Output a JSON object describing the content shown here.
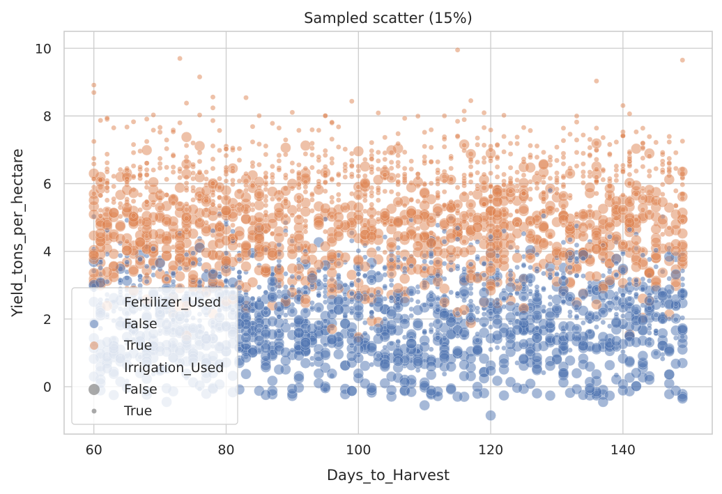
{
  "chart_data": {
    "type": "scatter",
    "title": "Sampled scatter (15%)",
    "xlabel": "Days_to_Harvest",
    "ylabel": "Yield_tons_per_hectare",
    "xlim": [
      55.5,
      153.5
    ],
    "ylim": [
      -1.4,
      10.5
    ],
    "x_ticks": [
      60,
      80,
      100,
      120,
      140
    ],
    "y_ticks": [
      0,
      2,
      4,
      6,
      8,
      10
    ],
    "grid": true,
    "legend_position": "bottom-left",
    "hue": {
      "title": "Fertilizer_Used",
      "levels": [
        {
          "label": "False",
          "color": "#4c72b0"
        },
        {
          "label": "True",
          "color": "#dd8452"
        }
      ]
    },
    "size": {
      "title": "Irrigation_Used",
      "levels": [
        {
          "label": "False",
          "marker": "large"
        },
        {
          "label": "True",
          "marker": "small"
        }
      ]
    },
    "point_alpha": 0.5,
    "groups": [
      {
        "fertilizer_used": "False",
        "irrigation_used": "False",
        "x_range": [
          60,
          149
        ],
        "y_mean": 1.5,
        "y_sd": 1.0
      },
      {
        "fertilizer_used": "False",
        "irrigation_used": "True",
        "x_range": [
          60,
          149
        ],
        "y_mean": 2.7,
        "y_sd": 1.0
      },
      {
        "fertilizer_used": "True",
        "irrigation_used": "False",
        "x_range": [
          60,
          149
        ],
        "y_mean": 4.5,
        "y_sd": 1.0
      },
      {
        "fertilizer_used": "True",
        "irrigation_used": "True",
        "x_range": [
          60,
          149
        ],
        "y_mean": 6.0,
        "y_sd": 1.0
      }
    ],
    "notable_points": [
      {
        "x": 115,
        "y": 9.95,
        "fertilizer_used": "True",
        "irrigation_used": "True"
      },
      {
        "x": 73,
        "y": 9.7,
        "fertilizer_used": "True",
        "irrigation_used": "True"
      },
      {
        "x": 149,
        "y": 9.65,
        "fertilizer_used": "True",
        "irrigation_used": "True"
      },
      {
        "x": 120,
        "y": -0.85,
        "fertilizer_used": "False",
        "irrigation_used": "False"
      },
      {
        "x": 110,
        "y": -0.55,
        "fertilizer_used": "False",
        "irrigation_used": "False"
      },
      {
        "x": 71,
        "y": -0.45,
        "fertilizer_used": "False",
        "irrigation_used": "False"
      },
      {
        "x": 137,
        "y": -0.45,
        "fertilizer_used": "False",
        "irrigation_used": "False"
      },
      {
        "x": 149,
        "y": -0.35,
        "fertilizer_used": "False",
        "irrigation_used": "False"
      }
    ]
  }
}
